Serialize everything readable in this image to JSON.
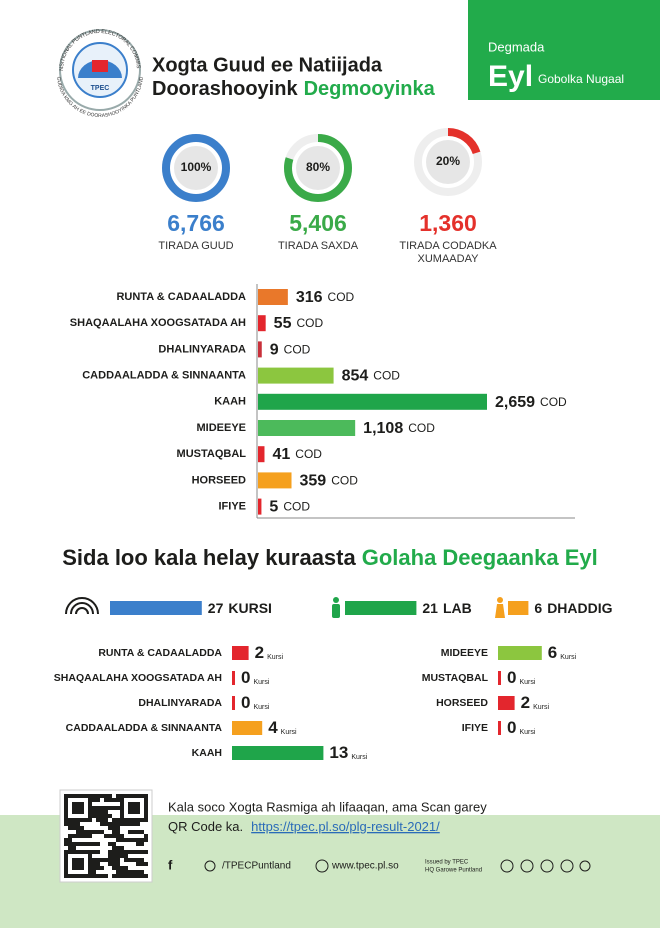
{
  "header": {
    "logo_ring_top": "TRANSITIONAL PUNTLAND ELECTORAL COMMISSION",
    "logo_ring_bottom": "GUDIGA KMG AH EE DOORASHOOYINKA PUNTLAND",
    "logo_text": "TPEC",
    "title_line1": "Xogta Guud ee Natiijada",
    "title_line2": "Doorashooyink",
    "title_line2_highlight": "Degmooyinka",
    "district_label": "Degmada",
    "district": "Eyl",
    "region": "Gobolka Nugaal"
  },
  "summary": [
    {
      "percent": 100,
      "percent_label": "100%",
      "count": "6,766",
      "label_lines": [
        "TIRADA GUUD"
      ],
      "color": "#3b7fcb"
    },
    {
      "percent": 80,
      "percent_label": "80%",
      "count": "5,406",
      "label_lines": [
        "TIRADA SAXDA"
      ],
      "color": "#3aaa48"
    },
    {
      "percent": 20,
      "percent_label": "20%",
      "count": "1,360",
      "label_lines": [
        "TIRADA CODADKA",
        "XUMAADAY"
      ],
      "color": "#e4312b"
    }
  ],
  "votes": {
    "unit": "COD",
    "rows": [
      {
        "name": "RUNTA & CADAALADDA",
        "value": 316,
        "label": "316",
        "color": "#e9782a"
      },
      {
        "name": "SHAQAALAHA XOOGSATADA AH",
        "value": 55,
        "label": "55",
        "color": "#e3262d"
      },
      {
        "name": "DHALINYARADA",
        "value": 9,
        "label": "9",
        "color": "#c8303a"
      },
      {
        "name": "CADDAALADDA & SINNAANTA",
        "value": 854,
        "label": "854",
        "color": "#8cc63f"
      },
      {
        "name": "KAAH",
        "value": 2659,
        "label": "2,659",
        "color": "#1fa54a"
      },
      {
        "name": "MIDEEYE",
        "value": 1108,
        "label": "1,108",
        "color": "#4cba5b"
      },
      {
        "name": "MUSTAQBAL",
        "value": 41,
        "label": "41",
        "color": "#e3262d"
      },
      {
        "name": "HORSEED",
        "value": 359,
        "label": "359",
        "color": "#f5a01e"
      },
      {
        "name": "IFIYE",
        "value": 5,
        "label": "5",
        "color": "#e3262d"
      }
    ]
  },
  "seats": {
    "title": "Sida loo kala helay kuraasta",
    "title_highlight": "Golaha Deegaanka Eyl",
    "totals": [
      {
        "value": 27,
        "unit": "KURSI",
        "color": "#3b7fcb"
      },
      {
        "value": 21,
        "unit": "LAB",
        "color": "#1fa54a"
      },
      {
        "value": 6,
        "unit": "DHADDIG",
        "color": "#f5a01e"
      }
    ],
    "unit": "Kursi",
    "left": [
      {
        "name": "RUNTA & CADAALADDA",
        "value": 2,
        "color": "#e3262d"
      },
      {
        "name": "SHAQAALAHA XOOGSATADA AH",
        "value": 0,
        "color": "#e3262d"
      },
      {
        "name": "DHALINYARADA",
        "value": 0,
        "color": "#e3262d"
      },
      {
        "name": "CADDAALADDA & SINNAANTA",
        "value": 4,
        "color": "#f5a01e"
      },
      {
        "name": "KAAH",
        "value": 13,
        "color": "#1fa54a"
      }
    ],
    "right": [
      {
        "name": "MIDEEYE",
        "value": 6,
        "color": "#8cc63f"
      },
      {
        "name": "MUSTAQBAL",
        "value": 0,
        "color": "#e3262d"
      },
      {
        "name": "HORSEED",
        "value": 2,
        "color": "#e3262d"
      },
      {
        "name": "IFIYE",
        "value": 0,
        "color": "#e3262d"
      }
    ]
  },
  "footer": {
    "text_line1": "Kala soco Xogta Rasmiga ah lifaaqan, ama Scan garey",
    "text_line2": "QR Code ka.",
    "link": "https://tpec.pl.so/plg-result-2021/",
    "social": "/TPECPuntland",
    "website": "www.tpec.pl.so",
    "issued_line1": "Issued by TPEC",
    "issued_line2": "HQ Garowe Puntland"
  }
}
